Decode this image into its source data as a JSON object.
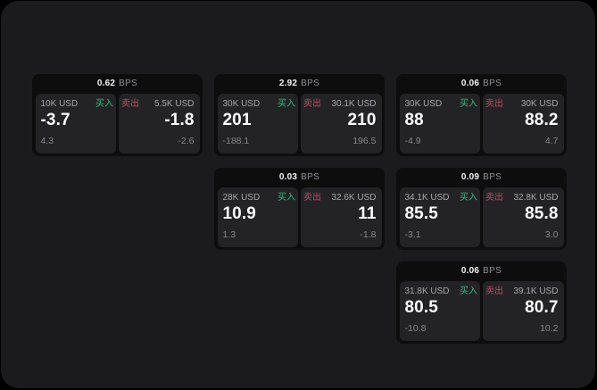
{
  "app": {
    "description": "dark trading quote board with buy/sell price tiles",
    "background_color": "#1b1b1d",
    "outer_background_color": "#000000",
    "card_background_color": "#0d0d0e",
    "panel_background_color": "#232326",
    "buy_color": "#36b97d",
    "sell_color": "#c2495f"
  },
  "labels": {
    "bps_unit": "BPS",
    "buy": "买入",
    "sell": "卖出"
  },
  "cards": [
    {
      "bps": "0.62",
      "buy": {
        "size": "10K USD",
        "price": "-3.7",
        "delta": "4.3"
      },
      "sell": {
        "size": "5.5K USD",
        "price": "-1.8",
        "delta": "-2.6"
      }
    },
    {
      "bps": "2.92",
      "buy": {
        "size": "30K USD",
        "price": "201",
        "delta": "-188.1"
      },
      "sell": {
        "size": "30.1K USD",
        "price": "210",
        "delta": "196.5"
      }
    },
    {
      "bps": "0.06",
      "buy": {
        "size": "30K USD",
        "price": "88",
        "delta": "-4.9"
      },
      "sell": {
        "size": "30K USD",
        "price": "88.2",
        "delta": "4.7"
      }
    },
    {
      "bps": "0.03",
      "buy": {
        "size": "28K USD",
        "price": "10.9",
        "delta": "1.3"
      },
      "sell": {
        "size": "32.6K USD",
        "price": "11",
        "delta": "-1.8"
      }
    },
    {
      "bps": "0.09",
      "buy": {
        "size": "34.1K USD",
        "price": "85.5",
        "delta": "-3.1"
      },
      "sell": {
        "size": "32.8K USD",
        "price": "85.8",
        "delta": "3.0"
      }
    },
    {
      "bps": "0.06",
      "buy": {
        "size": "31.8K USD",
        "price": "80.5",
        "delta": "-10.8"
      },
      "sell": {
        "size": "39.1K USD",
        "price": "80.7",
        "delta": "10.2"
      }
    }
  ]
}
